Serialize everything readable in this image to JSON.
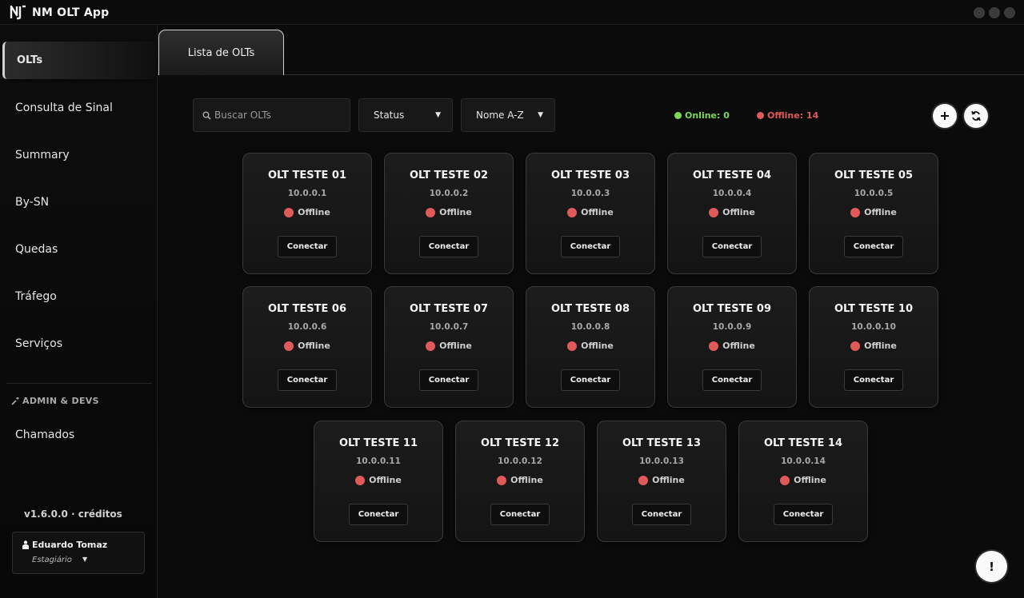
{
  "app": {
    "title": "NM OLT App"
  },
  "sidebar": {
    "items": [
      {
        "label": "OLTs"
      },
      {
        "label": "Consulta de Sinal"
      },
      {
        "label": "Summary"
      },
      {
        "label": "By-SN"
      },
      {
        "label": "Quedas"
      },
      {
        "label": "Tráfego"
      },
      {
        "label": "Serviços"
      }
    ],
    "admin_section": "ADMIN & DEVS",
    "admin_items": [
      {
        "label": "Chamados"
      }
    ],
    "version": "v1.6.0.0 · créditos",
    "user": {
      "name": "Eduardo Tomaz",
      "role": "Estagiário"
    }
  },
  "tabs": [
    {
      "label": "Lista de OLTs"
    }
  ],
  "toolbar": {
    "search_placeholder": "Buscar OLTs",
    "status_select": "Status",
    "sort_select": "Nome A-Z",
    "online_label": "Online: 0",
    "offline_label": "Offline: 14",
    "add_icon": "plus-icon",
    "refresh_icon": "refresh-icon"
  },
  "colors": {
    "online": "#7ed957",
    "offline": "#e05a5a"
  },
  "olts": [
    {
      "name": "OLT TESTE 01",
      "ip": "10.0.0.1",
      "status": "Offline",
      "action": "Conectar"
    },
    {
      "name": "OLT TESTE 02",
      "ip": "10.0.0.2",
      "status": "Offline",
      "action": "Conectar"
    },
    {
      "name": "OLT TESTE 03",
      "ip": "10.0.0.3",
      "status": "Offline",
      "action": "Conectar"
    },
    {
      "name": "OLT TESTE 04",
      "ip": "10.0.0.4",
      "status": "Offline",
      "action": "Conectar"
    },
    {
      "name": "OLT TESTE 05",
      "ip": "10.0.0.5",
      "status": "Offline",
      "action": "Conectar"
    },
    {
      "name": "OLT TESTE 06",
      "ip": "10.0.0.6",
      "status": "Offline",
      "action": "Conectar"
    },
    {
      "name": "OLT TESTE 07",
      "ip": "10.0.0.7",
      "status": "Offline",
      "action": "Conectar"
    },
    {
      "name": "OLT TESTE 08",
      "ip": "10.0.0.8",
      "status": "Offline",
      "action": "Conectar"
    },
    {
      "name": "OLT TESTE 09",
      "ip": "10.0.0.9",
      "status": "Offline",
      "action": "Conectar"
    },
    {
      "name": "OLT TESTE 10",
      "ip": "10.0.0.10",
      "status": "Offline",
      "action": "Conectar"
    },
    {
      "name": "OLT TESTE 11",
      "ip": "10.0.0.11",
      "status": "Offline",
      "action": "Conectar"
    },
    {
      "name": "OLT TESTE 12",
      "ip": "10.0.0.12",
      "status": "Offline",
      "action": "Conectar"
    },
    {
      "name": "OLT TESTE 13",
      "ip": "10.0.0.13",
      "status": "Offline",
      "action": "Conectar"
    },
    {
      "name": "OLT TESTE 14",
      "ip": "10.0.0.14",
      "status": "Offline",
      "action": "Conectar"
    }
  ],
  "help_button": "!"
}
